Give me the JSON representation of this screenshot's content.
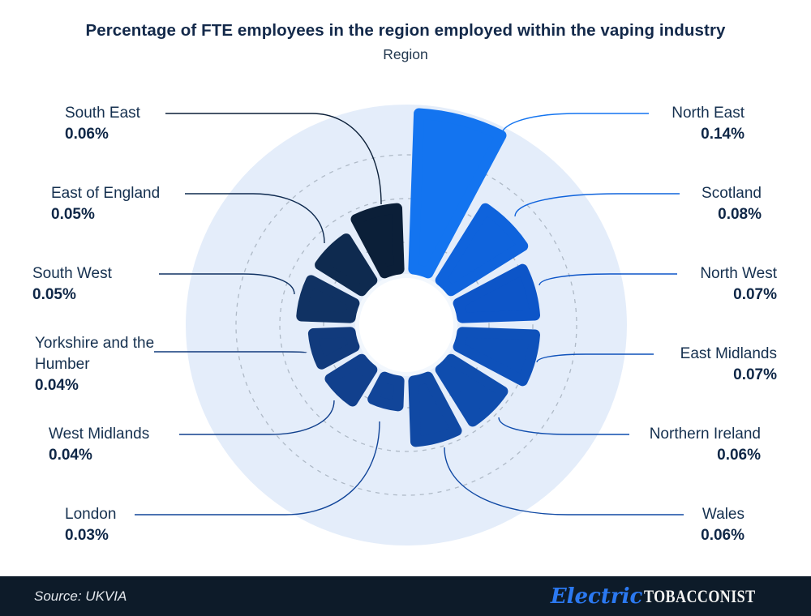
{
  "title": "Percentage of FTE employees in the region employed within the vaping industry",
  "subtitle": "Region",
  "footer": {
    "source": "Source: UKVIA",
    "brand_script": "Electric",
    "brand_rest": "TOBACCONIST"
  },
  "colors": {
    "text": "#13294A",
    "accent": "#2B79F1",
    "footer_bg": "#0D1B29",
    "background_circle": "#E4EDFA",
    "gridline": "#AFBAC7",
    "hole": "#FFFFFF"
  },
  "chart_data": {
    "type": "polar-rose",
    "title": "Percentage of FTE employees in the region employed within the vaping industry",
    "subtitle": "Region",
    "unit": "%",
    "start_angle_deg": 0,
    "clockwise": true,
    "rlim": [
      0,
      0.14
    ],
    "grid": "dashed-circles",
    "legend": "callout-labels",
    "categories": [
      "North East",
      "Scotland",
      "North West",
      "East Midlands",
      "Northern Ireland",
      "Wales",
      "London",
      "West Midlands",
      "Yorkshire and the Humber",
      "South West",
      "East of England",
      "South East"
    ],
    "values": [
      0.14,
      0.08,
      0.07,
      0.07,
      0.06,
      0.06,
      0.03,
      0.04,
      0.04,
      0.05,
      0.05,
      0.06
    ],
    "labels": [
      "0.14%",
      "0.08%",
      "0.07%",
      "0.07%",
      "0.06%",
      "0.06%",
      "0.03%",
      "0.04%",
      "0.04%",
      "0.05%",
      "0.05%",
      "0.06%"
    ],
    "colors": [
      "#1374F0",
      "#0F63DC",
      "#0D55C8",
      "#0E51BA",
      "#0F4DAE",
      "#1049A4",
      "#114599",
      "#11408D",
      "#113A7C",
      "#103263",
      "#0E2A4F",
      "#0B1F38"
    ]
  }
}
